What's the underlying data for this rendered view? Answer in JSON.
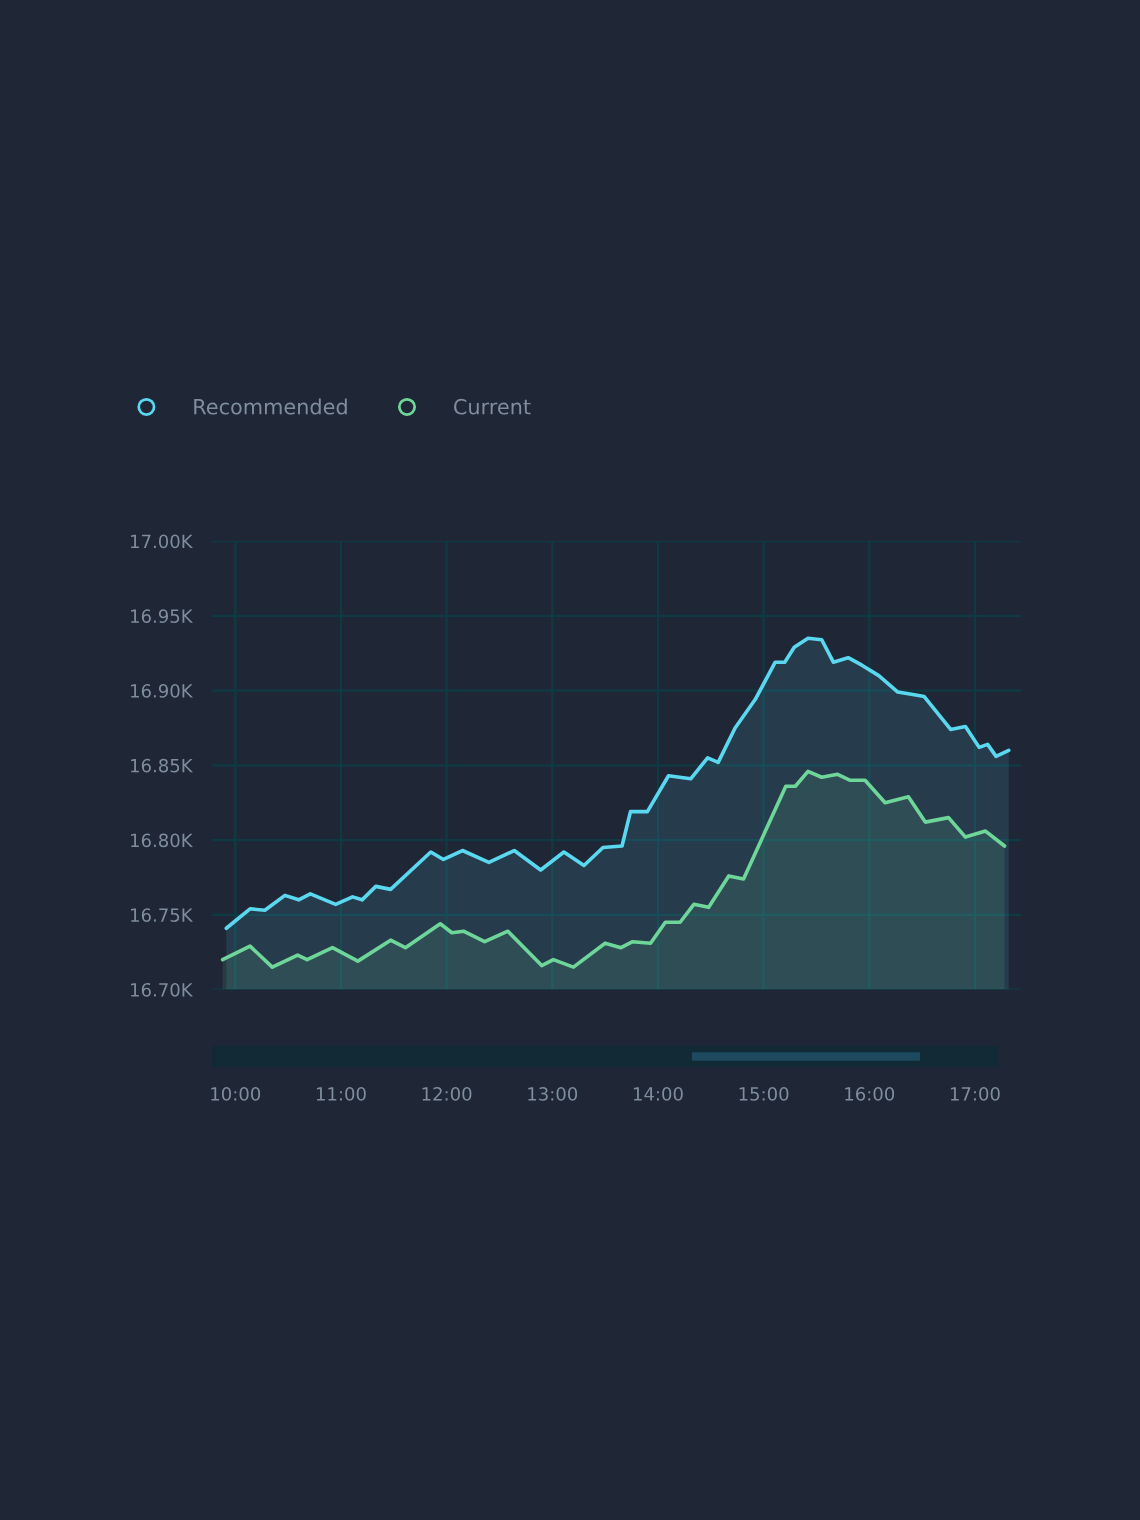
{
  "chart_data": {
    "type": "area",
    "xlim": [
      9.78,
      17.44
    ],
    "ylim": [
      16700,
      17000
    ],
    "xticks": [
      {
        "value": 10,
        "label": "10:00"
      },
      {
        "value": 11,
        "label": "11:00"
      },
      {
        "value": 12,
        "label": "12:00"
      },
      {
        "value": 13,
        "label": "13:00"
      },
      {
        "value": 14,
        "label": "14:00"
      },
      {
        "value": 15,
        "label": "15:00"
      },
      {
        "value": 16,
        "label": "16:00"
      },
      {
        "value": 17,
        "label": "17:00"
      }
    ],
    "yticks": [
      {
        "value": 16700,
        "label": "16.70K"
      },
      {
        "value": 16750,
        "label": "16.75K"
      },
      {
        "value": 16800,
        "label": "16.80K"
      },
      {
        "value": 16850,
        "label": "16.85K"
      },
      {
        "value": 16900,
        "label": "16.90K"
      },
      {
        "value": 16950,
        "label": "16.95K"
      },
      {
        "value": 17000,
        "label": "17.00K"
      }
    ],
    "grid": true,
    "legend": "top left",
    "series": [
      {
        "name": "Recommended",
        "color": "#5ad8ef",
        "x": [
          9.915,
          10.14,
          10.28,
          10.47,
          10.6,
          10.71,
          10.95,
          11.11,
          11.2,
          11.33,
          11.47,
          11.85,
          11.97,
          12.15,
          12.4,
          12.64,
          12.89,
          13.11,
          13.3,
          13.48,
          13.66,
          13.74,
          13.9,
          14.1,
          14.31,
          14.47,
          14.57,
          14.73,
          14.92,
          15.11,
          15.2,
          15.29,
          15.42,
          15.55,
          15.66,
          15.8,
          15.93,
          16.09,
          16.27,
          16.44,
          16.52,
          16.77,
          16.91,
          17.04,
          17.12,
          17.2,
          17.32
        ],
        "values": [
          16741,
          16754,
          16753,
          16763,
          16760,
          16764,
          16757,
          16762,
          16760,
          16769,
          16767,
          16792,
          16787,
          16793,
          16785,
          16793,
          16780,
          16792,
          16783,
          16795,
          16796,
          16819,
          16819,
          16843,
          16841,
          16855,
          16852,
          16875,
          16894,
          16919,
          16919,
          16929,
          16935,
          16934,
          16919,
          16922,
          16917,
          16910,
          16899,
          16897,
          16896,
          16874,
          16876,
          16862,
          16864,
          16856,
          16860
        ]
      },
      {
        "name": "Current",
        "color": "#6fd69a",
        "x": [
          9.88,
          10.14,
          10.35,
          10.59,
          10.68,
          10.92,
          11.16,
          11.47,
          11.61,
          11.94,
          12.05,
          12.16,
          12.36,
          12.58,
          12.9,
          13.01,
          13.2,
          13.5,
          13.65,
          13.76,
          13.93,
          14.07,
          14.21,
          14.34,
          14.48,
          14.67,
          14.81,
          15.21,
          15.3,
          15.42,
          15.55,
          15.7,
          15.82,
          15.96,
          16.15,
          16.37,
          16.53,
          16.75,
          16.91,
          17.1,
          17.28
        ],
        "values": [
          16720,
          16729,
          16715,
          16723,
          16720,
          16728,
          16719,
          16733,
          16728,
          16744,
          16738,
          16739,
          16732,
          16739,
          16716,
          16720,
          16715,
          16731,
          16728,
          16732,
          16731,
          16745,
          16745,
          16757,
          16755,
          16776,
          16774,
          16836,
          16836,
          16846,
          16842,
          16844,
          16840,
          16840,
          16825,
          16829,
          16812,
          16815,
          16802,
          16806,
          16796
        ]
      }
    ]
  }
}
